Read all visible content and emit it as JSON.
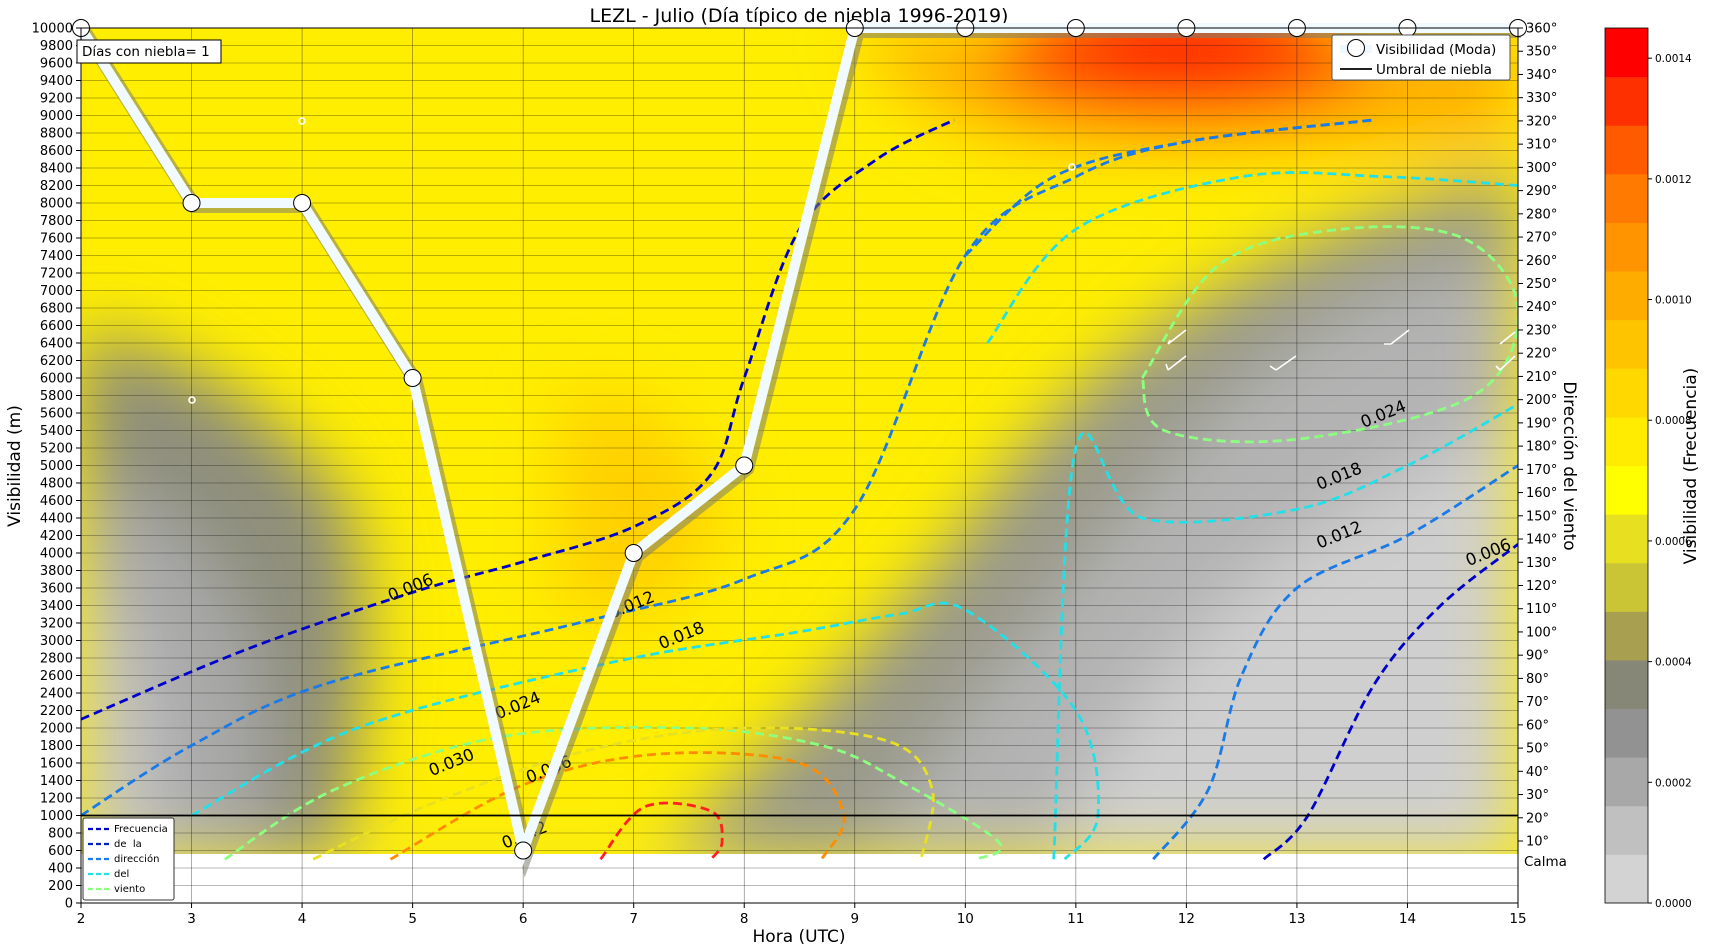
{
  "chart_data": {
    "type": "line",
    "title": "LEZL - Julio (Día típico de niebla 1996-2019)",
    "xlabel": "Hora (UTC)",
    "ylabel": "Visibilidad (m)",
    "y2label": "Dirección del viento",
    "colorbar_label": "Visibilidad (Frecuencia)",
    "annotation": "Días con niebla= 1",
    "calm_label": "Calma",
    "xlim": [
      2,
      15
    ],
    "ylim": [
      0,
      10000
    ],
    "x_ticks": [
      "2",
      "3",
      "4",
      "5",
      "6",
      "7",
      "8",
      "9",
      "10",
      "11",
      "12",
      "13",
      "14",
      "15"
    ],
    "y_ticks": [
      "0",
      "200",
      "400",
      "600",
      "800",
      "1000",
      "1200",
      "1400",
      "1600",
      "1800",
      "2000",
      "2200",
      "2400",
      "2600",
      "2800",
      "3000",
      "3200",
      "3400",
      "3600",
      "3800",
      "4000",
      "4200",
      "4400",
      "4600",
      "4800",
      "5000",
      "5200",
      "5400",
      "5600",
      "5800",
      "6000",
      "6200",
      "6400",
      "6600",
      "6800",
      "7000",
      "7200",
      "7400",
      "7600",
      "7800",
      "8000",
      "8200",
      "8400",
      "8600",
      "8800",
      "9000",
      "9200",
      "9400",
      "9600",
      "9800",
      "10000"
    ],
    "y2_ticks": [
      "10°",
      "20°",
      "30°",
      "40°",
      "50°",
      "60°",
      "70°",
      "80°",
      "90°",
      "100°",
      "110°",
      "120°",
      "130°",
      "140°",
      "150°",
      "160°",
      "170°",
      "180°",
      "190°",
      "200°",
      "210°",
      "220°",
      "230°",
      "240°",
      "250°",
      "260°",
      "270°",
      "280°",
      "290°",
      "300°",
      "310°",
      "320°",
      "330°",
      "340°",
      "350°",
      "360°"
    ],
    "colorbar_ticks": [
      "0.0000",
      "0.0002",
      "0.0004",
      "0.0006",
      "0.0008",
      "0.0010",
      "0.0012",
      "0.0014"
    ],
    "colorbar_colors": [
      "#d3d3d3",
      "#c0c0c0",
      "#a8a8a8",
      "#929292",
      "#878778",
      "#a8a050",
      "#cac535",
      "#e6e020",
      "#ffff00",
      "#ffec00",
      "#ffd800",
      "#ffc400",
      "#ffac00",
      "#ff9400",
      "#ff7a00",
      "#ff5a00",
      "#ff3000",
      "#ff0000"
    ],
    "series": [
      {
        "name": "Visibilidad (Moda)",
        "x": [
          2,
          3,
          4,
          5,
          6,
          7,
          8,
          9,
          10,
          11,
          12,
          13,
          14,
          15
        ],
        "y": [
          10000,
          8000,
          8000,
          6000,
          600,
          4000,
          5000,
          10000,
          10000,
          10000,
          10000,
          10000,
          10000,
          10000
        ]
      }
    ],
    "threshold": {
      "name": "Umbral de niebla",
      "y": 1000
    },
    "legend_main": {
      "placement": "top-right",
      "entries": [
        "Visibilidad (Moda)",
        "Umbral de niebla"
      ]
    },
    "legend_wind": {
      "placement": "bottom-left",
      "entries": [
        "Frecuencia",
        "de  la",
        "dirección",
        "del",
        "viento"
      ]
    },
    "contour_labels": [
      {
        "text": "0.006",
        "x": 5.0,
        "y": 3550
      },
      {
        "text": "0.012",
        "x": 7.0,
        "y": 3350
      },
      {
        "text": "0.018",
        "x": 7.45,
        "y": 3000
      },
      {
        "text": "0.024",
        "x": 5.97,
        "y": 2200
      },
      {
        "text": "0.030",
        "x": 5.37,
        "y": 1550
      },
      {
        "text": "0.036",
        "x": 6.25,
        "y": 1470
      },
      {
        "text": "0.042",
        "x": 6.03,
        "y": 720
      },
      {
        "text": "0.024",
        "x": 13.8,
        "y": 5530
      },
      {
        "text": "0.018",
        "x": 13.4,
        "y": 4820
      },
      {
        "text": "0.012",
        "x": 13.4,
        "y": 4150
      },
      {
        "text": "0.006",
        "x": 14.75,
        "y": 3950
      }
    ]
  }
}
